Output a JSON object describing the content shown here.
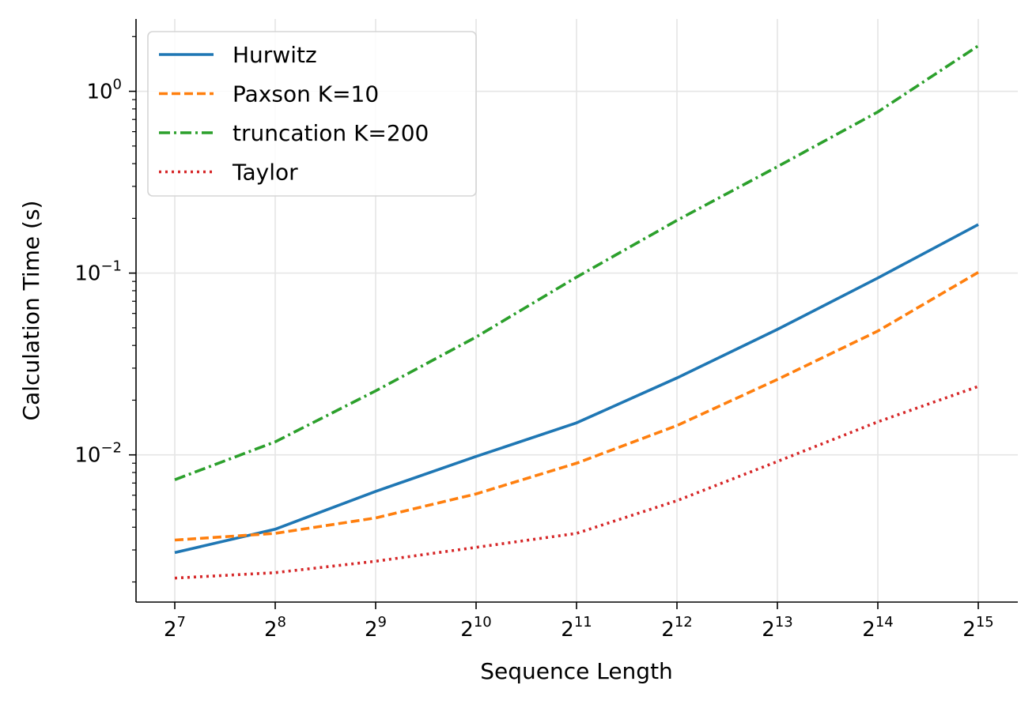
{
  "chart_data": {
    "type": "line",
    "title": "",
    "xlabel": "Sequence Length",
    "ylabel": "Calculation Time (s)",
    "x_scale": "log2",
    "y_scale": "log10",
    "x_base": "2",
    "x": [
      7,
      8,
      9,
      10,
      11,
      12,
      13,
      14,
      15
    ],
    "x_tick_exponents": [
      "7",
      "8",
      "9",
      "10",
      "11",
      "12",
      "13",
      "14",
      "15"
    ],
    "y_ticks": [
      {
        "base": "10",
        "exp": "0",
        "value": 1
      },
      {
        "base": "10",
        "exp": "−1",
        "value": 0.1
      },
      {
        "base": "10",
        "exp": "−2",
        "value": 0.01
      }
    ],
    "ylim": [
      0.00155,
      2.5
    ],
    "grid": true,
    "legend_position": "top-left",
    "series": [
      {
        "name": "Hurwitz",
        "color": "#1f77b4",
        "dash": "solid",
        "values": [
          0.0029,
          0.0039,
          0.0063,
          0.0098,
          0.015,
          0.0265,
          0.049,
          0.094,
          0.185
        ]
      },
      {
        "name": "Paxson K=10",
        "color": "#ff7f0e",
        "dash": "dashed",
        "values": [
          0.0034,
          0.0037,
          0.0045,
          0.0061,
          0.009,
          0.0145,
          0.026,
          0.048,
          0.101
        ]
      },
      {
        "name": "truncation K=200",
        "color": "#2ca02c",
        "dash": "dashdot",
        "values": [
          0.0073,
          0.0118,
          0.0225,
          0.0445,
          0.095,
          0.195,
          0.385,
          0.77,
          1.78
        ]
      },
      {
        "name": "Taylor",
        "color": "#d62728",
        "dash": "dotted",
        "values": [
          0.0021,
          0.00225,
          0.0026,
          0.0031,
          0.0037,
          0.0056,
          0.0092,
          0.0152,
          0.0238
        ]
      }
    ]
  }
}
